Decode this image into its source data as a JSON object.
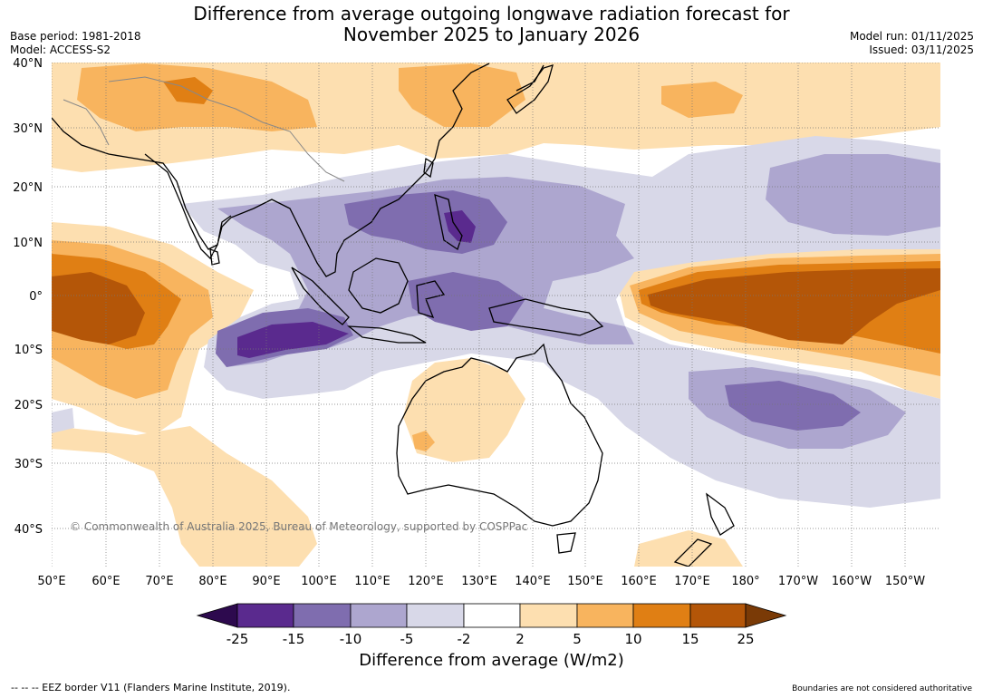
{
  "header": {
    "title_line1": "Difference from average outgoing longwave radiation forecast for",
    "title_line2": "November 2025 to January 2026",
    "base_period": "Base period: 1981-2018",
    "model": "Model: ACCESS-S2",
    "model_run": "Model run: 01/11/2025",
    "issued": "Issued: 03/11/2025"
  },
  "map": {
    "copyright": "© Commonwealth of Australia 2025, Bureau of Meteorology, supported by COSPPac",
    "lat_labels": [
      "40°N",
      "30°N",
      "20°N",
      "10°N",
      "0°",
      "10°S",
      "20°S",
      "30°S",
      "40°S"
    ],
    "lon_labels": [
      "50°E",
      "60°E",
      "70°E",
      "80°E",
      "90°E",
      "100°E",
      "110°E",
      "120°E",
      "130°E",
      "140°E",
      "150°E",
      "160°E",
      "170°E",
      "180°",
      "170°W",
      "160°W",
      "150°W"
    ]
  },
  "colorbar": {
    "title": "Difference from average (W/m2)",
    "ticks": [
      "-25",
      "-15",
      "-10",
      "-5",
      "-2",
      "2",
      "5",
      "10",
      "15",
      "25"
    ],
    "colors": {
      "lt_minus25": "#2d0a4e",
      "minus25_15": "#5a2a8e",
      "minus15_10": "#7f6daf",
      "minus10_5": "#ada6cf",
      "minus5_2": "#d8d8e8",
      "neutral": "#ffffff",
      "plus2_5": "#fddfb0",
      "plus5_10": "#f8b45e",
      "plus10_15": "#e07f14",
      "plus15_25": "#b45608",
      "gt_25": "#7a3a06"
    }
  },
  "footer": {
    "eez_note": "--  --  -- EEZ border V11 (Flanders Marine Institute, 2019).",
    "disclaimer": "Boundaries are not considered authoritative"
  }
}
